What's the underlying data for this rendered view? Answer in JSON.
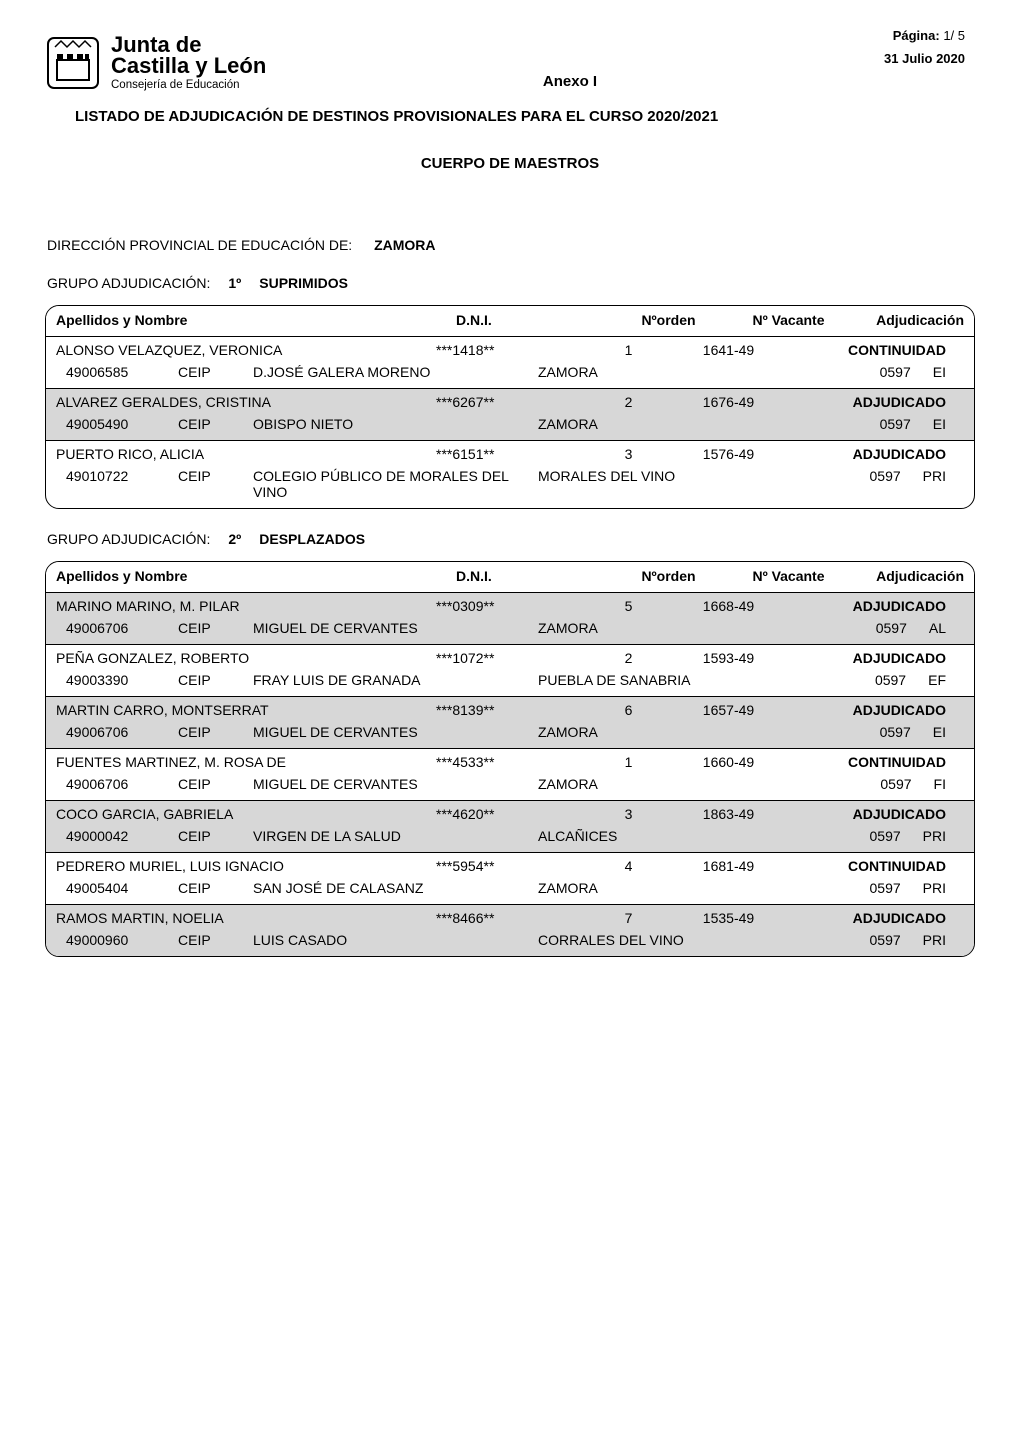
{
  "meta": {
    "page_label": "Página:",
    "page_value": "1/  5",
    "date": "31 Julio 2020"
  },
  "org": {
    "line1": "Junta de",
    "line2": "Castilla y León",
    "line3": "Consejería de Educación"
  },
  "headings": {
    "anexo": "Anexo I",
    "listado": "LISTADO  DE ADJUDICACIÓN DE DESTINOS PROVISIONALES PARA EL CURSO 2020/2021",
    "cuerpo": "CUERPO DE MAESTROS"
  },
  "direccion": {
    "label": "DIRECCIÓN PROVINCIAL DE EDUCACIÓN DE:",
    "value": "ZAMORA"
  },
  "table_headers": {
    "name": "Apellidos y Nombre",
    "dni": "D.N.I.",
    "orden": "Nºorden",
    "vacante": "Nº Vacante",
    "adj": "Adjudicación"
  },
  "grupo_label": "GRUPO ADJUDICACIÓN:",
  "groups": [
    {
      "num": "1º",
      "label": "SUPRIMIDOS",
      "persons": [
        {
          "shaded": false,
          "name": "ALONSO  VELAZQUEZ, VERONICA",
          "dni": "***1418**",
          "orden": "1",
          "vacante": "1641-49",
          "adj": "CONTINUIDAD",
          "center_code": "49006585",
          "center_type": "CEIP",
          "center_name": "D.JOSÉ GALERA MORENO",
          "town": "ZAMORA",
          "code1": "0597",
          "code2": "EI"
        },
        {
          "shaded": true,
          "name": "ALVAREZ  GERALDES, CRISTINA",
          "dni": "***6267**",
          "orden": "2",
          "vacante": "1676-49",
          "adj": "ADJUDICADO",
          "center_code": "49005490",
          "center_type": "CEIP",
          "center_name": "OBISPO NIETO",
          "town": "ZAMORA",
          "code1": "0597",
          "code2": "EI"
        },
        {
          "shaded": false,
          "name": "PUERTO  RICO, ALICIA",
          "dni": "***6151**",
          "orden": "3",
          "vacante": "1576-49",
          "adj": "ADJUDICADO",
          "center_code": "49010722",
          "center_type": "CEIP",
          "center_name": "COLEGIO PÚBLICO DE MORALES DEL VINO",
          "town": "MORALES DEL VINO",
          "code1": "0597",
          "code2": "PRI"
        }
      ]
    },
    {
      "num": "2º",
      "label": "DESPLAZADOS",
      "persons": [
        {
          "shaded": true,
          "name": "MARINO  MARINO, M. PILAR",
          "dni": "***0309**",
          "orden": "5",
          "vacante": "1668-49",
          "adj": "ADJUDICADO",
          "center_code": "49006706",
          "center_type": "CEIP",
          "center_name": "MIGUEL DE CERVANTES",
          "town": "ZAMORA",
          "code1": "0597",
          "code2": "AL"
        },
        {
          "shaded": false,
          "name": "PEÑA  GONZALEZ, ROBERTO",
          "dni": "***1072**",
          "orden": "2",
          "vacante": "1593-49",
          "adj": "ADJUDICADO",
          "center_code": "49003390",
          "center_type": "CEIP",
          "center_name": "FRAY LUIS DE GRANADA",
          "town": "PUEBLA DE SANABRIA",
          "code1": "0597",
          "code2": "EF"
        },
        {
          "shaded": true,
          "name": "MARTIN  CARRO, MONTSERRAT",
          "dni": "***8139**",
          "orden": "6",
          "vacante": "1657-49",
          "adj": "ADJUDICADO",
          "center_code": "49006706",
          "center_type": "CEIP",
          "center_name": "MIGUEL DE CERVANTES",
          "town": "ZAMORA",
          "code1": "0597",
          "code2": "EI"
        },
        {
          "shaded": false,
          "name": "FUENTES  MARTINEZ, M. ROSA DE",
          "dni": "***4533**",
          "orden": "1",
          "vacante": "1660-49",
          "adj": "CONTINUIDAD",
          "center_code": "49006706",
          "center_type": "CEIP",
          "center_name": "MIGUEL DE CERVANTES",
          "town": "ZAMORA",
          "code1": "0597",
          "code2": "FI"
        },
        {
          "shaded": true,
          "name": "COCO  GARCIA, GABRIELA",
          "dni": "***4620**",
          "orden": "3",
          "vacante": "1863-49",
          "adj": "ADJUDICADO",
          "center_code": "49000042",
          "center_type": "CEIP",
          "center_name": "VIRGEN DE LA SALUD",
          "town": "ALCAÑICES",
          "code1": "0597",
          "code2": "PRI"
        },
        {
          "shaded": false,
          "name": "PEDRERO  MURIEL, LUIS IGNACIO",
          "dni": "***5954**",
          "orden": "4",
          "vacante": "1681-49",
          "adj": "CONTINUIDAD",
          "center_code": "49005404",
          "center_type": "CEIP",
          "center_name": "SAN JOSÉ DE CALASANZ",
          "town": "ZAMORA",
          "code1": "0597",
          "code2": "PRI"
        },
        {
          "shaded": true,
          "name": "RAMOS  MARTIN, NOELIA",
          "dni": "***8466**",
          "orden": "7",
          "vacante": "1535-49",
          "adj": "ADJUDICADO",
          "center_code": "49000960",
          "center_type": "CEIP",
          "center_name": "LUIS CASADO",
          "town": "CORRALES DEL VINO",
          "code1": "0597",
          "code2": "PRI"
        }
      ]
    }
  ]
}
